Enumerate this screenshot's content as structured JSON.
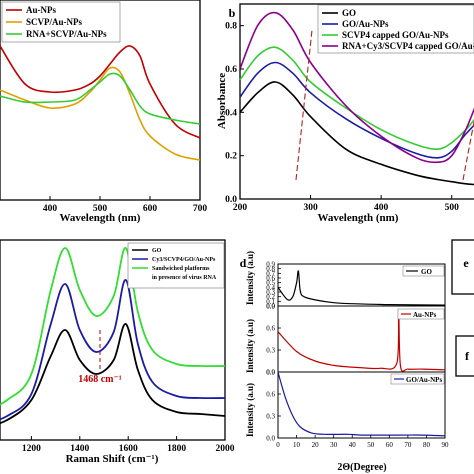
{
  "chart_data": [
    {
      "panel": "a",
      "type": "line",
      "xlabel": "Wavelength (nm)",
      "ylabel": "",
      "xlim": [
        300,
        700
      ],
      "ylim": [
        0,
        1
      ],
      "xticks": [
        "400",
        "500",
        "600",
        "700"
      ],
      "legend": "top-left",
      "x": [
        300,
        350,
        400,
        450,
        480,
        500,
        520,
        540,
        560,
        580,
        600,
        650,
        700
      ],
      "series": [
        {
          "name": "Au-NPs",
          "color": "#c00000",
          "values": [
            0.77,
            0.58,
            0.54,
            0.55,
            0.58,
            0.62,
            0.68,
            0.74,
            0.77,
            0.72,
            0.58,
            0.38,
            0.31
          ]
        },
        {
          "name": "SCVP/Au-NPs",
          "color": "#e0a000",
          "values": [
            0.55,
            0.5,
            0.46,
            0.48,
            0.54,
            0.6,
            0.66,
            0.64,
            0.53,
            0.4,
            0.32,
            0.23,
            0.2
          ]
        },
        {
          "name": "RNA+SCVP/Au-NPs",
          "color": "#33cc33",
          "values": [
            0.52,
            0.49,
            0.49,
            0.5,
            0.55,
            0.59,
            0.63,
            0.62,
            0.55,
            0.47,
            0.43,
            0.4,
            0.38
          ]
        }
      ]
    },
    {
      "panel": "b",
      "type": "line",
      "xlabel": "Wavelength (nm)",
      "ylabel": "Absorbance",
      "xlim": [
        200,
        550
      ],
      "ylim": [
        0.0,
        0.9
      ],
      "xticks": [
        "200",
        "300",
        "400",
        "500"
      ],
      "yticks": [
        "0.0",
        "0.2",
        "0.4",
        "0.6",
        "0.8"
      ],
      "legend": "top-right",
      "x": [
        200,
        225,
        250,
        275,
        300,
        350,
        400,
        450,
        480,
        500,
        520,
        540,
        550
      ],
      "series": [
        {
          "name": "GO",
          "color": "#000000",
          "values": [
            0.4,
            0.49,
            0.54,
            0.48,
            0.38,
            0.23,
            0.16,
            0.11,
            0.09,
            0.08,
            0.07,
            0.065,
            0.06
          ]
        },
        {
          "name": "GO/Au-NPs",
          "color": "#1a1aa6",
          "values": [
            0.47,
            0.58,
            0.63,
            0.58,
            0.49,
            0.37,
            0.28,
            0.21,
            0.19,
            0.22,
            0.3,
            0.36,
            0.33
          ]
        },
        {
          "name": "SCVP4 capped GO/Au-NPs",
          "color": "#33cc33",
          "values": [
            0.55,
            0.66,
            0.7,
            0.64,
            0.54,
            0.42,
            0.32,
            0.25,
            0.23,
            0.26,
            0.32,
            0.39,
            0.36
          ]
        },
        {
          "name": "RNA+Cy3/SCVP4 capped GO/Au-NPs",
          "color": "#8b008b",
          "values": [
            0.6,
            0.8,
            0.86,
            0.78,
            0.63,
            0.43,
            0.29,
            0.19,
            0.17,
            0.2,
            0.32,
            0.47,
            0.44
          ]
        }
      ],
      "annotations": [
        "dashed guide through ~250 nm peaks",
        "dashed guide through ~520 nm peaks"
      ]
    },
    {
      "panel": "c",
      "type": "line",
      "xlabel": "Raman Shift (cm⁻¹)",
      "ylabel": "",
      "xlim": [
        1000,
        2000
      ],
      "ylim": [
        0,
        1
      ],
      "xticks": [
        "1200",
        "1400",
        "1600",
        "1800",
        "2000"
      ],
      "legend": "top-right",
      "annotation": "1468 cm⁻¹",
      "x": [
        1000,
        1100,
        1200,
        1280,
        1340,
        1400,
        1468,
        1540,
        1590,
        1640,
        1700,
        1800,
        1900,
        2000
      ],
      "series": [
        {
          "name": "GO",
          "color": "#000000",
          "values": [
            0.06,
            0.1,
            0.2,
            0.42,
            0.55,
            0.4,
            0.33,
            0.4,
            0.58,
            0.35,
            0.2,
            0.14,
            0.13,
            0.12
          ]
        },
        {
          "name": "Cy3/SCVP4/GO/Au-NPs",
          "color": "#1a1aa6",
          "values": [
            0.08,
            0.12,
            0.23,
            0.58,
            0.78,
            0.55,
            0.44,
            0.54,
            0.8,
            0.48,
            0.29,
            0.22,
            0.21,
            0.21
          ]
        },
        {
          "name": "Sandwiched platforms in presence of virus RNA",
          "color": "#33dd33",
          "values": [
            0.14,
            0.2,
            0.33,
            0.75,
            0.96,
            0.75,
            0.62,
            0.72,
            0.96,
            0.64,
            0.45,
            0.38,
            0.37,
            0.37
          ]
        }
      ]
    },
    {
      "panel": "d",
      "type": "line",
      "xlabel": "2Θ(Degree)",
      "ylabel": "Intensity (a.u)",
      "xlim": [
        0,
        90
      ],
      "xticks": [
        "0",
        "10",
        "20",
        "30",
        "40",
        "50",
        "60",
        "70",
        "80",
        "90"
      ],
      "subplots": [
        {
          "name": "GO",
          "color": "#000000",
          "ylim": [
            0.0,
            0.9
          ],
          "yticks": [
            "0.0",
            "0.1",
            "0.2",
            "0.3",
            "0.4",
            "0.5",
            "0.6",
            "0.7",
            "0.8",
            "0.9"
          ],
          "x": [
            0,
            5,
            8,
            10,
            11,
            12,
            14,
            20,
            30,
            40,
            60,
            90
          ],
          "values": [
            0.4,
            0.14,
            0.2,
            0.5,
            0.75,
            0.32,
            0.2,
            0.13,
            0.07,
            0.05,
            0.03,
            0.02
          ]
        },
        {
          "name": "Au-NPs",
          "color": "#c00000",
          "ylim": [
            0.0,
            0.9
          ],
          "yticks": [
            "0.0",
            "0.3",
            "0.6",
            "0.9"
          ],
          "x": [
            0,
            10,
            20,
            30,
            38,
            44,
            55,
            64,
            65,
            66,
            70,
            78,
            90
          ],
          "values": [
            0.55,
            0.28,
            0.15,
            0.09,
            0.07,
            0.06,
            0.05,
            0.12,
            0.85,
            0.08,
            0.04,
            0.04,
            0.03
          ]
        },
        {
          "name": "GO/Au-NPs",
          "color": "#1a1aa6",
          "ylim": [
            0.0,
            0.9
          ],
          "yticks": [
            "0.0",
            "0.3",
            "0.6",
            "0.9"
          ],
          "x": [
            0,
            4,
            8,
            12,
            18,
            25,
            38,
            45,
            65,
            78,
            90
          ],
          "values": [
            0.9,
            0.55,
            0.3,
            0.15,
            0.07,
            0.05,
            0.05,
            0.04,
            0.04,
            0.04,
            0.03
          ]
        }
      ]
    }
  ],
  "panel_labels": {
    "b": "b",
    "d": "d",
    "e": "e",
    "f": "f"
  },
  "legend_a": [
    "Au-NPs",
    "SCVP/Au-NPs",
    "RNA+SCVP/Au-NPs"
  ],
  "legend_b": [
    "GO",
    "GO/Au-NPs",
    "SCVP4 capped GO/Au-NPs",
    "RNA+Cy3/SCVP4 capped GO/Au-NPs"
  ],
  "legend_c": [
    "GO",
    "Cy3/SCVP4/GO/Au-NPs",
    "Sandwiched platforms",
    "in presence of virus RNA"
  ],
  "legend_d": [
    "GO",
    "Au-NPs",
    "GO/Au-NPs"
  ]
}
